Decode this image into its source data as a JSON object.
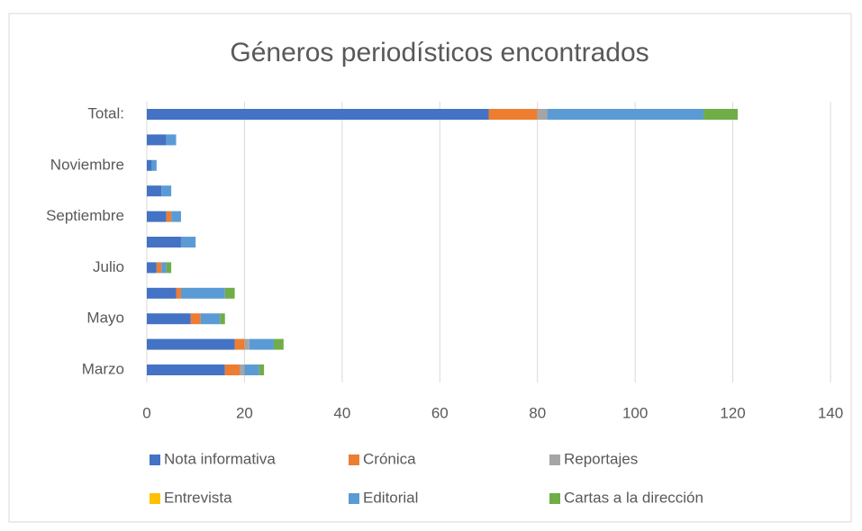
{
  "chart_data": {
    "type": "stacked_barh",
    "title": "Géneros periodísticos encontrados",
    "categories": [
      "Marzo",
      null,
      "Mayo",
      null,
      "Julio",
      null,
      "Septiembre",
      null,
      "Noviembre",
      null,
      "Total:"
    ],
    "series": [
      {
        "name": "Nota informativa",
        "color": "#4472c4",
        "values": [
          16,
          18,
          9,
          6,
          2,
          7,
          4,
          3,
          1,
          4,
          70
        ]
      },
      {
        "name": "Crónica",
        "color": "#ed7d31",
        "values": [
          3,
          2,
          2,
          1,
          1,
          0,
          1,
          0,
          0,
          0,
          10
        ]
      },
      {
        "name": "Reportajes",
        "color": "#a5a5a5",
        "values": [
          1,
          1,
          0,
          0,
          0,
          0,
          0,
          0,
          0,
          0,
          2
        ]
      },
      {
        "name": "Entrevista",
        "color": "#ffc000",
        "values": [
          0,
          0,
          0,
          0,
          0,
          0,
          0,
          0,
          0,
          0,
          0
        ]
      },
      {
        "name": "Editorial",
        "color": "#5b9bd5",
        "values": [
          3,
          5,
          4,
          9,
          1,
          3,
          2,
          2,
          1,
          2,
          32
        ]
      },
      {
        "name": "Cartas a la dirección",
        "color": "#70ad47",
        "values": [
          1,
          2,
          1,
          2,
          1,
          0,
          0,
          0,
          0,
          0,
          7
        ]
      }
    ],
    "xlim": [
      0,
      140
    ],
    "xticks": [
      0,
      20,
      40,
      60,
      80,
      100,
      120,
      140
    ],
    "grid": true
  }
}
